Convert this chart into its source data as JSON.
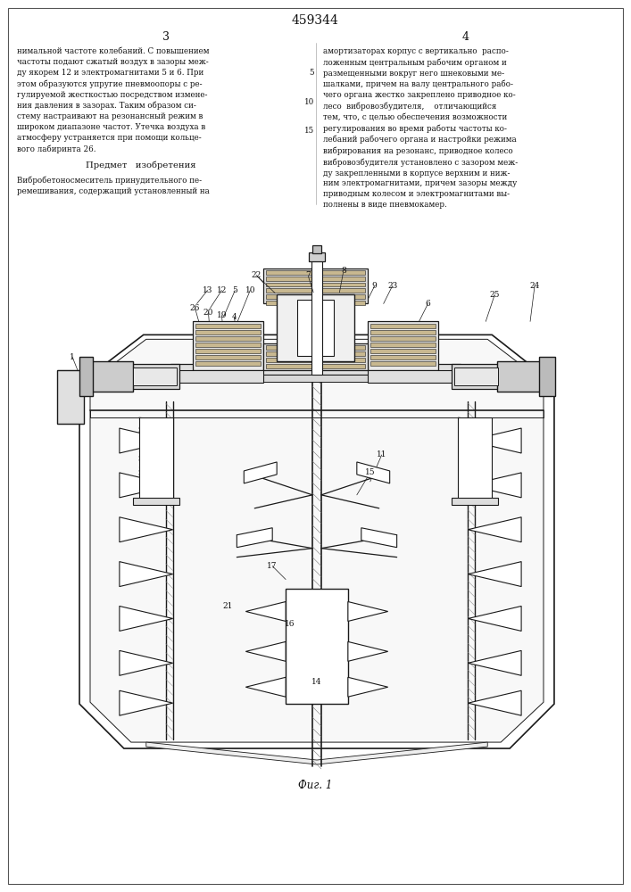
{
  "page_width": 7.07,
  "page_height": 10.0,
  "bg_color": "#ffffff",
  "patent_number": "459344",
  "left_text": "нимальной частоте колебаний. С повышением\nчастоты подают сжатый воздух в зазоры меж-\nду якорем 12 и электромагнитами 5 и 6. При\nэтом образуются упругие пневмоопоры с ре-\nгулируемой жесткостью посредством измене-\nния давления в зазорах. Таким образом си-\nстему настраивают на резонансный режим в\nшироком диапазоне частот. Утечка воздуха в\nатмосферу устраняется при помощи кольце-\nвого лабиринта 26.",
  "section_title": "Предмет   изобретения",
  "left_text2": "Вибробетоносмеситель принудительного пе-\nремешивания, содержащий установленный на",
  "right_text": "амортизаторах корпус с вертикально  распо-\nложенным центральным рабочим органом и\nразмещенными вокруг него шнековыми ме-\nшалками, причем на валу центрального рабо-\nчего органа жестко закреплено приводное ко-\nлесо  вибровозбудителя,    отличающийся\nтем, что, с целью обеспечения возможности\nрегулирования во время работы частоты ко-\nлебаний рабочего органа и настройки режима\nвибрирования на резонанс, приводное колесо\nвибровозбудителя установлено с зазором меж-\nду закрепленными в корпусе верхним и ниж-\nним электромагнитами, причем зазоры между\nприводным колесом и электромагнитами вы-\nполнены в виде пневмокамер.",
  "figure_caption": "Фиг. 1",
  "line_color": "#1a1a1a",
  "text_color": "#111111"
}
